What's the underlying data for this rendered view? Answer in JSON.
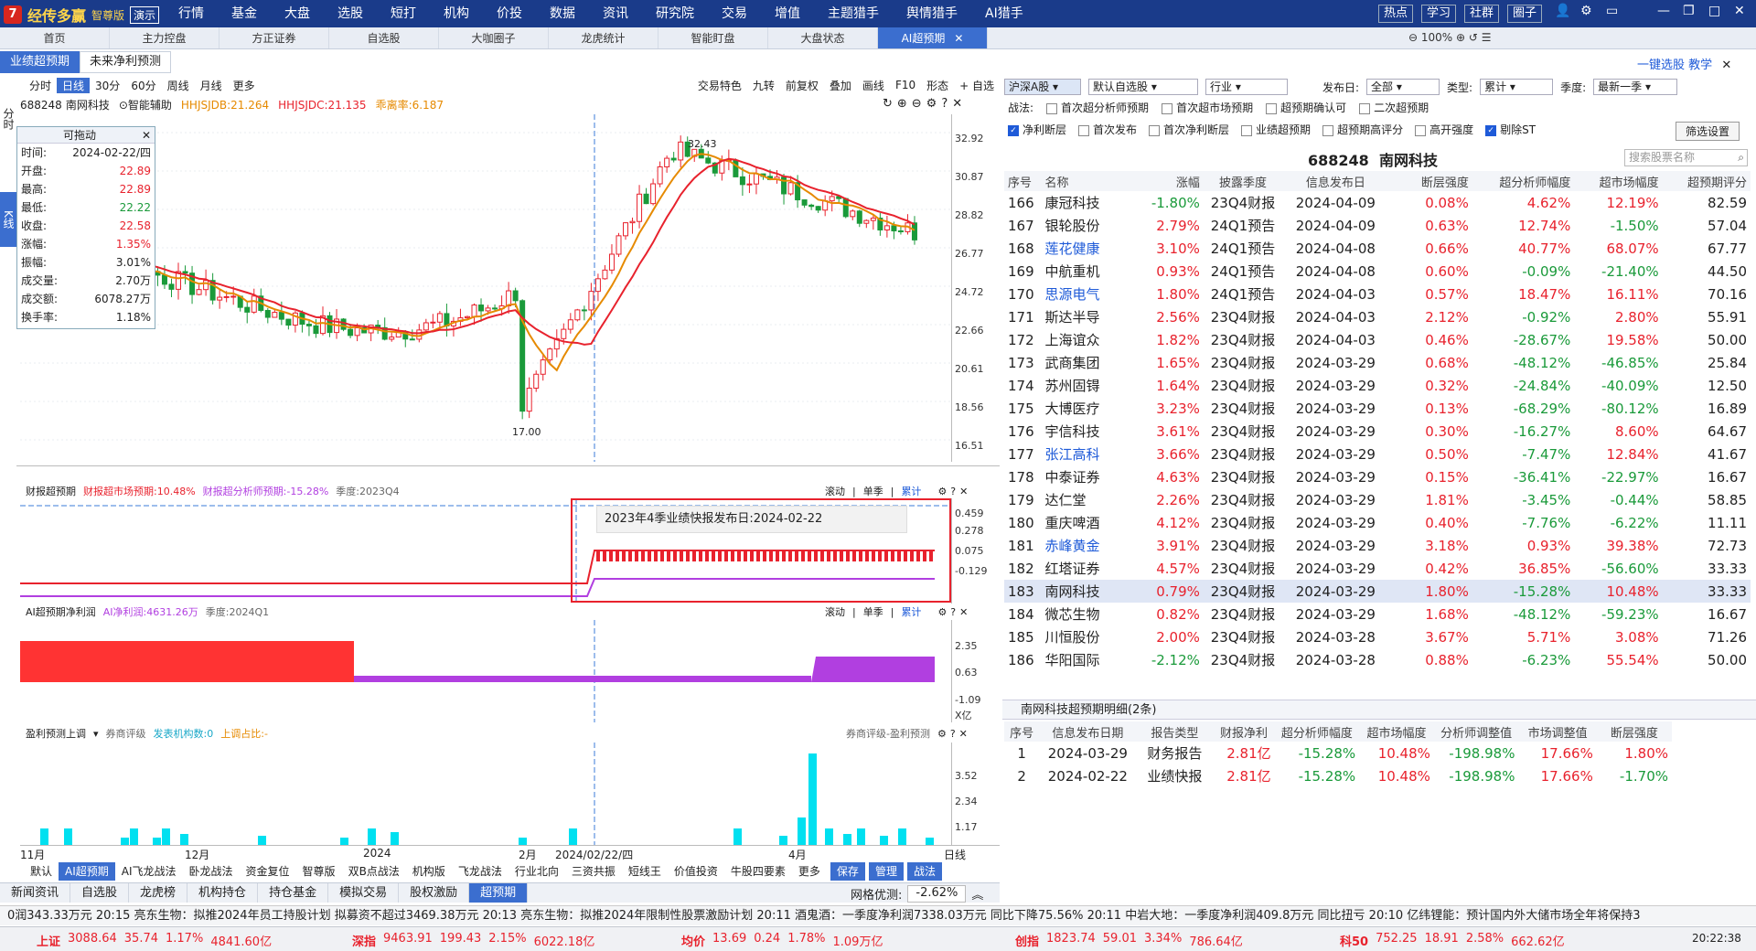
{
  "app": {
    "logo_mark": "7",
    "name": "经传多赢",
    "edition": "智尊版",
    "demo": "演示",
    "menu": [
      "行情",
      "基金",
      "大盘",
      "选股",
      "短打",
      "机构",
      "价投",
      "数据",
      "资讯",
      "研究院",
      "交易",
      "增值",
      "主题猎手",
      "舆情猎手",
      "AI猎手"
    ],
    "right_buttons": [
      "热点",
      "学习",
      "社群",
      "圈子"
    ]
  },
  "tabs": [
    "首页",
    "主力控盘",
    "方正证券",
    "自选股",
    "大咖圈子",
    "龙虎统计",
    "智能盯盘",
    "大盘状态",
    "AI超预期"
  ],
  "subtabs": [
    "业绩超预期",
    "未来净利预测"
  ],
  "chart_toolbar": {
    "periods": [
      "分时",
      "日线",
      "30分",
      "60分",
      "周线",
      "月线",
      "更多"
    ],
    "tools": [
      "交易特色",
      "九转",
      "前复权",
      "叠加",
      "画线",
      "F10",
      "形态",
      "+ 自选"
    ]
  },
  "stock": {
    "code": "688248",
    "name": "南网科技",
    "assist": "智能辅助",
    "ind1": "HHJSJDB:21.264",
    "ind2": "HHJSJDC:21.135",
    "ind3": "乖离率:6.187"
  },
  "infobox": {
    "title": "可拖动",
    "rows": [
      [
        "时间:",
        "2024-02-22/四"
      ],
      [
        "开盘:",
        "22.89"
      ],
      [
        "最高:",
        "22.89"
      ],
      [
        "最低:",
        "22.22"
      ],
      [
        "收盘:",
        "22.58"
      ],
      [
        "涨幅:",
        "1.35%"
      ],
      [
        "振幅:",
        "3.01%"
      ],
      [
        "成交量:",
        "2.70万"
      ],
      [
        "成交额:",
        "6078.27万"
      ],
      [
        "换手率:",
        "1.18%"
      ]
    ]
  },
  "side_labels": [
    "分时",
    "K线"
  ],
  "price_axis": [
    "32.92",
    "30.87",
    "28.82",
    "26.77",
    "24.72",
    "22.66",
    "20.61",
    "18.56",
    "16.51"
  ],
  "price_marks": {
    "high": "32.43",
    "low": "17.00"
  },
  "sub1": {
    "title": "财报超预期",
    "a": "财报超市场预期:10.48%",
    "b": "财报超分析师预期:-15.28%",
    "c": "季度:2023Q4",
    "btns": [
      "滚动",
      "单季",
      "累计"
    ],
    "axis": [
      "0.459",
      "0.278",
      "0.075",
      "-0.129"
    ],
    "tooltip": "2023年4季业绩快报发布日:2024-02-22"
  },
  "sub2": {
    "title": "AI超预期净利润",
    "a": "AI净利润:4631.26万",
    "c": "季度:2024Q1",
    "btns": [
      "滚动",
      "单季",
      "累计"
    ],
    "axis": [
      "2.35",
      "0.63",
      "-1.09",
      "X亿"
    ]
  },
  "sub3": {
    "title": "盈利预测上调",
    "b": "券商评级",
    "c": "发表机构数:0",
    "d": "上调占比:-",
    "right": "券商评级-盈利预测",
    "axis": [
      "3.52",
      "2.34",
      "1.17"
    ]
  },
  "time_axis": [
    "11月",
    "12月",
    "2024",
    "2月",
    "2024/02/22/四",
    "4月",
    "日线"
  ],
  "bottom_tabs": [
    "默认",
    "AI超预期",
    "AI飞龙战法",
    "卧龙战法",
    "资金复位",
    "智尊版",
    "双B点战法",
    "机构版",
    "飞龙战法",
    "行业北向",
    "三资共振",
    "短线王",
    "价值投资",
    "牛股四要素",
    "更多",
    "保存",
    "管理",
    "战法"
  ],
  "bottom_tabs2": [
    "新闻资讯",
    "自选股",
    "龙虎榜",
    "机构持仓",
    "持仓基金",
    "模拟交易",
    "股权激励",
    "超预期"
  ],
  "network": "网格优测:",
  "network_val": "-2.62%",
  "right": {
    "toolbar": [
      "一键选股",
      "教学"
    ],
    "zoom": "100%",
    "filter_a": "沪深A股",
    "filter_b": "默认自选股",
    "filter_c": "行业",
    "date_label": "发布日:",
    "date_val": "全部",
    "type_label": "类型:",
    "type_val": "累计",
    "season_label": "季度:",
    "season_val": "最新一季",
    "strat_label": "战法:",
    "checks1": [
      "首次超分析师预期",
      "首次超市场预期",
      "超预期确认可",
      "二次超预期"
    ],
    "checks2": [
      "净利断层",
      "首次发布",
      "首次净利断层",
      "业绩超预期",
      "超预期高评分",
      "高开强度",
      "剔除ST"
    ],
    "filter_btn": "筛选设置",
    "title_code": "688248",
    "title_name": "南网科技",
    "search_ph": "搜索股票名称",
    "headers": [
      "序号",
      "名称",
      "涨幅",
      "披露季度",
      "信息发布日",
      "断层强度",
      "超分析师幅度",
      "超市场幅度",
      "超预期评分"
    ],
    "rows": [
      [
        "166",
        "康冠科技",
        "-1.80%",
        "23Q4财报",
        "2024-04-09",
        "0.08%",
        "4.62%",
        "12.19%",
        "82.59"
      ],
      [
        "167",
        "银轮股份",
        "2.79%",
        "24Q1预告",
        "2024-04-09",
        "0.63%",
        "12.74%",
        "-1.50%",
        "57.04"
      ],
      [
        "168",
        "莲花健康",
        "3.10%",
        "24Q1预告",
        "2024-04-08",
        "0.66%",
        "40.77%",
        "68.07%",
        "67.77"
      ],
      [
        "169",
        "中航重机",
        "0.93%",
        "24Q1预告",
        "2024-04-08",
        "0.60%",
        "-0.09%",
        "-21.40%",
        "44.50"
      ],
      [
        "170",
        "思源电气",
        "1.80%",
        "24Q1预告",
        "2024-04-03",
        "0.57%",
        "18.47%",
        "16.11%",
        "70.16"
      ],
      [
        "171",
        "斯达半导",
        "2.56%",
        "23Q4财报",
        "2024-04-03",
        "2.12%",
        "-0.92%",
        "2.80%",
        "55.91"
      ],
      [
        "172",
        "上海谊众",
        "1.82%",
        "23Q4财报",
        "2024-04-03",
        "0.46%",
        "-28.67%",
        "19.58%",
        "50.00"
      ],
      [
        "173",
        "武商集团",
        "1.65%",
        "23Q4财报",
        "2024-03-29",
        "0.68%",
        "-48.12%",
        "-46.85%",
        "25.84"
      ],
      [
        "174",
        "苏州固锝",
        "1.64%",
        "23Q4财报",
        "2024-03-29",
        "0.32%",
        "-24.84%",
        "-40.09%",
        "12.50"
      ],
      [
        "175",
        "大博医疗",
        "3.23%",
        "23Q4财报",
        "2024-03-29",
        "0.13%",
        "-68.29%",
        "-80.12%",
        "16.89"
      ],
      [
        "176",
        "宇信科技",
        "3.61%",
        "23Q4财报",
        "2024-03-29",
        "0.30%",
        "-16.27%",
        "8.60%",
        "64.67"
      ],
      [
        "177",
        "张江高科",
        "3.66%",
        "23Q4财报",
        "2024-03-29",
        "0.50%",
        "-7.47%",
        "12.84%",
        "41.67"
      ],
      [
        "178",
        "中泰证券",
        "4.63%",
        "23Q4财报",
        "2024-03-29",
        "0.15%",
        "-36.41%",
        "-22.97%",
        "16.67"
      ],
      [
        "179",
        "达仁堂",
        "2.26%",
        "23Q4财报",
        "2024-03-29",
        "1.81%",
        "-3.45%",
        "-0.44%",
        "58.85"
      ],
      [
        "180",
        "重庆啤酒",
        "4.12%",
        "23Q4财报",
        "2024-03-29",
        "0.40%",
        "-7.76%",
        "-6.22%",
        "11.11"
      ],
      [
        "181",
        "赤峰黄金",
        "3.91%",
        "23Q4财报",
        "2024-03-29",
        "3.18%",
        "0.93%",
        "39.38%",
        "72.73"
      ],
      [
        "182",
        "红塔证券",
        "4.57%",
        "23Q4财报",
        "2024-03-29",
        "0.42%",
        "36.85%",
        "-56.60%",
        "33.33"
      ],
      [
        "183",
        "南网科技",
        "0.79%",
        "23Q4财报",
        "2024-03-29",
        "1.80%",
        "-15.28%",
        "10.48%",
        "33.33"
      ],
      [
        "184",
        "微芯生物",
        "0.82%",
        "23Q4财报",
        "2024-03-29",
        "1.68%",
        "-48.12%",
        "-59.23%",
        "16.67"
      ],
      [
        "185",
        "川恒股份",
        "2.00%",
        "23Q4财报",
        "2024-03-28",
        "3.67%",
        "5.71%",
        "3.08%",
        "71.26"
      ],
      [
        "186",
        "华阳国际",
        "-2.12%",
        "23Q4财报",
        "2024-03-28",
        "0.88%",
        "-6.23%",
        "55.54%",
        "50.00"
      ]
    ],
    "blue_names": [
      "莲花健康",
      "思源电气",
      "张江高科",
      "赤峰黄金"
    ],
    "detail_title": "南网科技超预期明细(2条)",
    "detail_headers": [
      "序号",
      "信息发布日期",
      "报告类型",
      "财报净利",
      "超分析师幅度",
      "超市场幅度",
      "分析师调整值",
      "市场调整值",
      "断层强度"
    ],
    "detail_rows": [
      [
        "1",
        "2024-03-29",
        "财务报告",
        "2.81亿",
        "-15.28%",
        "10.48%",
        "-198.98%",
        "17.66%",
        "1.80%"
      ],
      [
        "2",
        "2024-02-22",
        "业绩快报",
        "2.81亿",
        "-15.28%",
        "10.48%",
        "-198.98%",
        "17.66%",
        "-1.70%"
      ]
    ]
  },
  "news": "0润343.33万元    20:15 亮东生物：拟推2024年员工持股计划 拟募资不超过3469.38万元    20:13 亮东生物：拟推2024年限制性股票激励计划    20:11 酒鬼酒：一季度净利润7338.03万元 同比下降75.56%    20:11 中岩大地：一季度净利润409.8万元 同比扭亏    20:10 亿纬锂能：预计国内外大储市场全年将保持3",
  "ticker": [
    [
      "上证",
      "3088.64",
      "35.74",
      "1.17%",
      "4841.60亿"
    ],
    [
      "深指",
      "9463.91",
      "199.43",
      "2.15%",
      "6022.18亿"
    ],
    [
      "均价",
      "13.69",
      "0.24",
      "1.78%",
      "1.09万亿"
    ],
    [
      "创指",
      "1823.74",
      "59.01",
      "3.34%",
      "786.64亿"
    ],
    [
      "科50",
      "752.25",
      "18.91",
      "2.58%",
      "662.62亿"
    ]
  ],
  "clock": "20:22:38"
}
